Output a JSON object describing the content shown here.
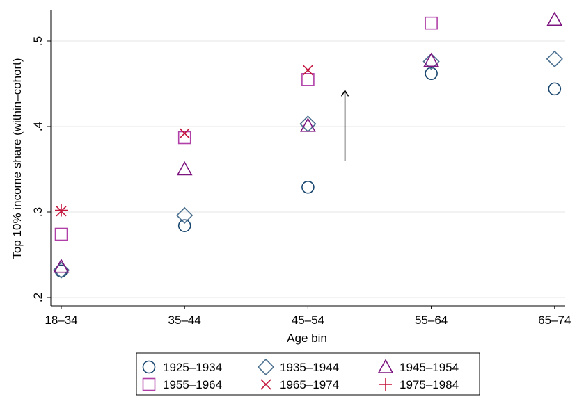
{
  "chart_data": {
    "type": "scatter",
    "categories": [
      "18–34",
      "35–44",
      "45–54",
      "55–64",
      "65–74"
    ],
    "xlabel": "Age bin",
    "ylabel": "Top 10% income share (within–cohort)",
    "ylim": [
      0.2,
      0.54
    ],
    "yticks": [
      0.2,
      0.3,
      0.4,
      0.5
    ],
    "ytick_labels": [
      ".2",
      ".3",
      ".4",
      ".5"
    ],
    "grid": true,
    "legend_position": "bottom",
    "series": [
      {
        "name": "1925–1934",
        "marker": "circle",
        "color": "#1a476f",
        "values": [
          0.231,
          0.284,
          0.329,
          0.462,
          0.444
        ]
      },
      {
        "name": "1935–1944",
        "marker": "diamond",
        "color": "#4a6f8f",
        "values": [
          0.232,
          0.296,
          0.403,
          0.476,
          0.479
        ]
      },
      {
        "name": "1945–1954",
        "marker": "triangle",
        "color": "#7d1580",
        "values": [
          0.236,
          0.35,
          0.401,
          0.477,
          0.525
        ]
      },
      {
        "name": "1955–1964",
        "marker": "square",
        "color": "#b040a8",
        "values": [
          0.274,
          0.387,
          0.455,
          0.521,
          null
        ]
      },
      {
        "name": "1965–1974",
        "marker": "x",
        "color": "#c3143c",
        "values": [
          0.301,
          0.392,
          0.466,
          null,
          null
        ]
      },
      {
        "name": "1975–1984",
        "marker": "plus",
        "color": "#c3143c",
        "values": [
          0.302,
          null,
          null,
          null,
          null
        ]
      }
    ],
    "annotations": [
      {
        "type": "arrow",
        "x": 2.3,
        "y_from": 0.36,
        "y_to": 0.442
      }
    ]
  }
}
